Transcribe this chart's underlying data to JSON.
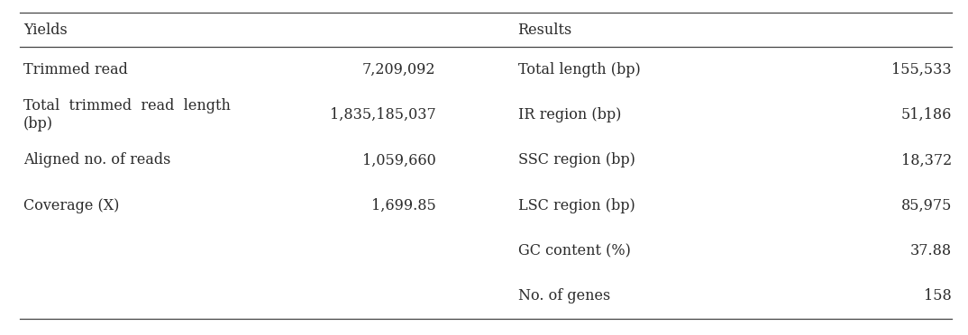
{
  "header_left": "Yields",
  "header_right": "Results",
  "left_rows": [
    {
      "label": "Trimmed read",
      "value": "7,209,092",
      "multiline": false
    },
    {
      "label": "Total  trimmed  read  length\n(bp)",
      "value": "1,835,185,037",
      "multiline": true
    },
    {
      "label": "Aligned no. of reads",
      "value": "1,059,660",
      "multiline": false
    },
    {
      "label": "Coverage (X)",
      "value": "1,699.85",
      "multiline": false
    }
  ],
  "right_rows": [
    {
      "label": "Total length (bp)",
      "value": "155,533"
    },
    {
      "label": "IR region (bp)",
      "value": "51,186"
    },
    {
      "label": "SSC region (bp)",
      "value": "18,372"
    },
    {
      "label": "LSC region (bp)",
      "value": "85,975"
    },
    {
      "label": "GC content (%)",
      "value": "37.88"
    },
    {
      "label": "No. of genes",
      "value": "158"
    }
  ],
  "bg_color": "#ffffff",
  "text_color": "#2a2a2a",
  "line_color": "#444444",
  "font_size": 11.5,
  "header_font_size": 11.5,
  "fig_width": 10.74,
  "fig_height": 3.72,
  "dpi": 100
}
